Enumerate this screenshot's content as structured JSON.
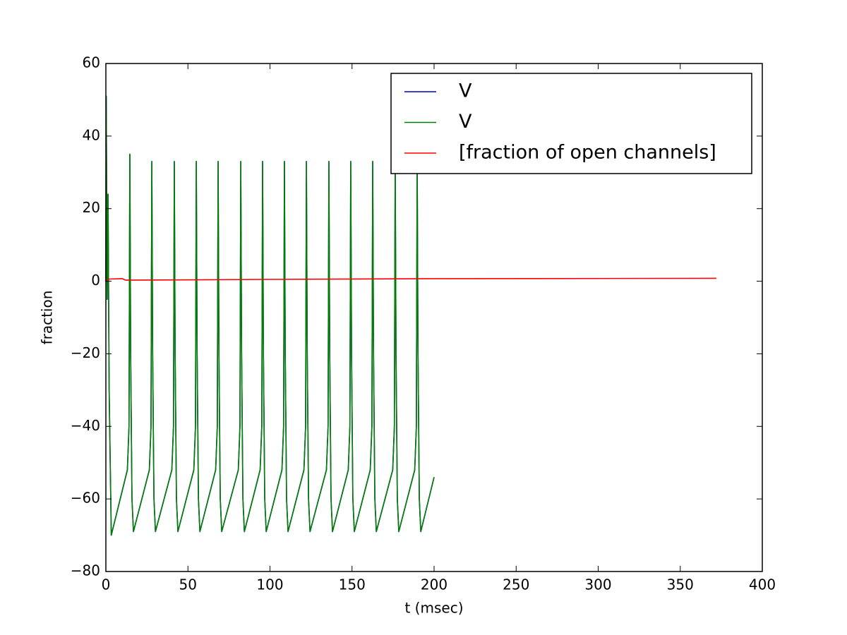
{
  "chart_data": {
    "type": "line",
    "x_label": "t (msec)",
    "y_label": "fraction",
    "xlim": [
      0,
      400
    ],
    "xticks": [
      0,
      50,
      100,
      150,
      200,
      250,
      300,
      350,
      400
    ],
    "ylim": [
      -80,
      60
    ],
    "yticks": [
      {
        "value": -80,
        "label": "−80"
      },
      {
        "value": -60,
        "label": "−60"
      },
      {
        "value": -40,
        "label": "−40"
      },
      {
        "value": -20,
        "label": "−20"
      },
      0,
      20,
      40,
      60
    ],
    "legend": "upper right",
    "series": [
      {
        "name": "V",
        "color": "#0000bf",
        "x": [
          0,
          0.2,
          0.8,
          1.3,
          2.0,
          3.3,
          13.1,
          14.1,
          14.6,
          15.1,
          15.9,
          16.8,
          26.5,
          27.5,
          28.0,
          28.5,
          29.3,
          30.2,
          40.2,
          41.2,
          41.7,
          42.2,
          43.0,
          43.9,
          53.6,
          54.6,
          55.1,
          55.6,
          56.4,
          57.3,
          66.9,
          67.9,
          68.4,
          68.9,
          69.7,
          70.6,
          80.7,
          81.7,
          82.2,
          82.7,
          83.5,
          84.4,
          94.0,
          95.0,
          95.5,
          96.0,
          96.8,
          97.7,
          107.3,
          108.3,
          108.8,
          109.3,
          110.1,
          111.0,
          120.7,
          121.7,
          122.2,
          122.7,
          123.5,
          124.4,
          134.4,
          135.4,
          135.9,
          136.4,
          137.2,
          138.1,
          147.7,
          148.7,
          149.2,
          149.7,
          150.5,
          151.4,
          161.1,
          162.1,
          162.6,
          163.1,
          163.9,
          164.8,
          174.8,
          175.8,
          176.3,
          176.8,
          177.6,
          178.5,
          188.2,
          189.2,
          189.7,
          190.2,
          191.0,
          191.9,
          200
        ],
        "values": [
          0,
          51,
          -5,
          24,
          -30,
          -70,
          -52,
          -40,
          35,
          -20,
          -60,
          -69,
          -52,
          -40,
          33,
          -20,
          -60,
          -69,
          -52,
          -40,
          33,
          -20,
          -60,
          -69,
          -52,
          -40,
          33,
          -20,
          -60,
          -69,
          -52,
          -40,
          33,
          -20,
          -60,
          -69,
          -52,
          -40,
          33,
          -20,
          -60,
          -69,
          -52,
          -40,
          33,
          -20,
          -60,
          -69,
          -52,
          -40,
          33,
          -20,
          -60,
          -69,
          -52,
          -40,
          33,
          -20,
          -60,
          -69,
          -52,
          -40,
          33,
          -20,
          -60,
          -69,
          -52,
          -40,
          33,
          -20,
          -60,
          -69,
          -52,
          -40,
          33,
          -20,
          -60,
          -69,
          -52,
          -40,
          33,
          -20,
          -60,
          -69,
          -52,
          -40,
          33,
          -20,
          -60,
          -69,
          -54
        ]
      },
      {
        "name": "V",
        "color": "#007f00",
        "x": [
          0,
          0.2,
          0.8,
          1.3,
          2.0,
          3.3,
          13.1,
          14.1,
          14.6,
          15.1,
          15.9,
          16.8,
          26.5,
          27.5,
          28.0,
          28.5,
          29.3,
          30.2,
          40.2,
          41.2,
          41.7,
          42.2,
          43.0,
          43.9,
          53.6,
          54.6,
          55.1,
          55.6,
          56.4,
          57.3,
          66.9,
          67.9,
          68.4,
          68.9,
          69.7,
          70.6,
          80.7,
          81.7,
          82.2,
          82.7,
          83.5,
          84.4,
          94.0,
          95.0,
          95.5,
          96.0,
          96.8,
          97.7,
          107.3,
          108.3,
          108.8,
          109.3,
          110.1,
          111.0,
          120.7,
          121.7,
          122.2,
          122.7,
          123.5,
          124.4,
          134.4,
          135.4,
          135.9,
          136.4,
          137.2,
          138.1,
          147.7,
          148.7,
          149.2,
          149.7,
          150.5,
          151.4,
          161.1,
          162.1,
          162.6,
          163.1,
          163.9,
          164.8,
          174.8,
          175.8,
          176.3,
          176.8,
          177.6,
          178.5,
          188.2,
          189.2,
          189.7,
          190.2,
          191.0,
          191.9,
          200
        ],
        "values": [
          0,
          51,
          -5,
          24,
          -30,
          -70,
          -52,
          -40,
          35,
          -20,
          -60,
          -69,
          -52,
          -40,
          33,
          -20,
          -60,
          -69,
          -52,
          -40,
          33,
          -20,
          -60,
          -69,
          -52,
          -40,
          33,
          -20,
          -60,
          -69,
          -52,
          -40,
          33,
          -20,
          -60,
          -69,
          -52,
          -40,
          33,
          -20,
          -60,
          -69,
          -52,
          -40,
          33,
          -20,
          -60,
          -69,
          -52,
          -40,
          33,
          -20,
          -60,
          -69,
          -52,
          -40,
          33,
          -20,
          -60,
          -69,
          -52,
          -40,
          33,
          -20,
          -60,
          -69,
          -52,
          -40,
          33,
          -20,
          -60,
          -69,
          -52,
          -40,
          33,
          -20,
          -60,
          -69,
          -52,
          -40,
          33,
          -20,
          -60,
          -69,
          -52,
          -40,
          33,
          -20,
          -60,
          -69,
          -54
        ]
      },
      {
        "name": "[fraction of open channels]",
        "color": "#ff0000",
        "x": [
          0,
          2,
          10,
          12,
          100,
          200,
          372
        ],
        "values": [
          0,
          0.6,
          0.7,
          0.3,
          0.5,
          0.7,
          0.8
        ]
      }
    ]
  }
}
